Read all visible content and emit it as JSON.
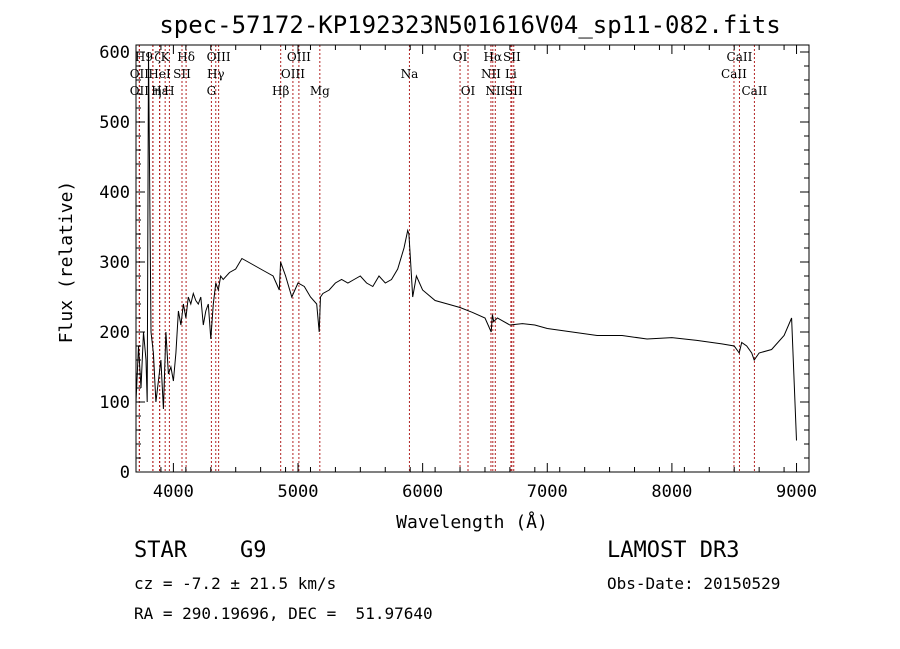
{
  "chart_data": {
    "type": "line",
    "title": "spec-57172-KP192323N501616V04_sp11-082.fits",
    "xlabel": "Wavelength (Å)",
    "ylabel": "Flux (relative)",
    "xlim": [
      3700,
      9100
    ],
    "ylim": [
      0,
      610
    ],
    "xticks": [
      4000,
      5000,
      6000,
      7000,
      8000,
      9000
    ],
    "yticks": [
      0,
      100,
      200,
      300,
      400,
      500,
      600
    ],
    "grid": false,
    "line_color": "#000000",
    "marker_color": "#b22222",
    "spectrum": {
      "name": "flux",
      "x": [
        3700,
        3720,
        3740,
        3760,
        3780,
        3790,
        3800,
        3820,
        3840,
        3860,
        3880,
        3900,
        3920,
        3940,
        3960,
        3980,
        4000,
        4020,
        4040,
        4060,
        4080,
        4100,
        4120,
        4140,
        4160,
        4180,
        4200,
        4220,
        4240,
        4260,
        4280,
        4300,
        4320,
        4340,
        4360,
        4380,
        4400,
        4450,
        4500,
        4550,
        4600,
        4650,
        4700,
        4750,
        4800,
        4850,
        4860,
        4900,
        4950,
        5000,
        5050,
        5100,
        5150,
        5170,
        5180,
        5200,
        5250,
        5300,
        5350,
        5400,
        5450,
        5500,
        5550,
        5600,
        5650,
        5700,
        5750,
        5800,
        5850,
        5880,
        5890,
        5900,
        5920,
        5950,
        6000,
        6100,
        6200,
        6300,
        6400,
        6500,
        6550,
        6560,
        6570,
        6600,
        6700,
        6800,
        6900,
        7000,
        7200,
        7400,
        7600,
        7800,
        8000,
        8200,
        8400,
        8500,
        8540,
        8560,
        8600,
        8640,
        8660,
        8700,
        8800,
        8900,
        8960,
        9000
      ],
      "y": [
        100,
        180,
        120,
        200,
        160,
        100,
        600,
        200,
        170,
        100,
        130,
        160,
        90,
        200,
        140,
        150,
        130,
        170,
        230,
        210,
        240,
        220,
        250,
        240,
        255,
        245,
        240,
        250,
        210,
        230,
        240,
        190,
        240,
        270,
        260,
        280,
        275,
        285,
        290,
        305,
        300,
        295,
        290,
        285,
        280,
        260,
        300,
        280,
        250,
        270,
        265,
        250,
        240,
        200,
        250,
        255,
        260,
        270,
        275,
        270,
        275,
        280,
        270,
        265,
        280,
        270,
        275,
        290,
        320,
        345,
        340,
        310,
        250,
        280,
        260,
        245,
        240,
        235,
        228,
        220,
        200,
        225,
        215,
        220,
        210,
        212,
        210,
        205,
        200,
        195,
        195,
        190,
        192,
        188,
        183,
        180,
        170,
        185,
        180,
        170,
        160,
        170,
        175,
        195,
        220,
        45
      ]
    },
    "line_markers": [
      {
        "label": "OII",
        "wavelength": 3727,
        "label_row": 2,
        "label_offset": 0
      },
      {
        "label": "H9",
        "wavelength": 3836,
        "label_row": 0,
        "label_offset": -9
      },
      {
        "label": "Hε",
        "wavelength": 3889,
        "label_row": 2,
        "label_offset": 0
      },
      {
        "label": "OII",
        "wavelength": 3727,
        "label_row": 1,
        "label_offset": 0
      },
      {
        "label": "HeI",
        "wavelength": 3889,
        "label_row": 1,
        "label_offset": 0
      },
      {
        "label": "ζ",
        "wavelength": 3890,
        "label_row": 0,
        "label_offset": -2
      },
      {
        "label": "η",
        "wavelength": 3835,
        "label_row": 2,
        "label_offset": 5
      },
      {
        "label": "K",
        "wavelength": 3934,
        "label_row": 0,
        "label_offset": 0
      },
      {
        "label": "H",
        "wavelength": 3968,
        "label_row": 2,
        "label_offset": 0
      },
      {
        "label": "SII",
        "wavelength": 4069,
        "label_row": 1,
        "label_offset": 0
      },
      {
        "label": "Hδ",
        "wavelength": 4102,
        "label_row": 0,
        "label_offset": 0
      },
      {
        "label": "G",
        "wavelength": 4305,
        "label_row": 2,
        "label_offset": 0
      },
      {
        "label": "Hγ",
        "wavelength": 4340,
        "label_row": 1,
        "label_offset": 0
      },
      {
        "label": "OIII",
        "wavelength": 4363,
        "label_row": 0,
        "label_offset": 0
      },
      {
        "label": "Hβ",
        "wavelength": 4861,
        "label_row": 2,
        "label_offset": 0
      },
      {
        "label": "OIII",
        "wavelength": 4959,
        "label_row": 1,
        "label_offset": 0
      },
      {
        "label": "OIII",
        "wavelength": 5007,
        "label_row": 0,
        "label_offset": 0
      },
      {
        "label": "Mg",
        "wavelength": 5175,
        "label_row": 2,
        "label_offset": 0
      },
      {
        "label": "Na",
        "wavelength": 5894,
        "label_row": 1,
        "label_offset": 0
      },
      {
        "label": "OI",
        "wavelength": 6300,
        "label_row": 0,
        "label_offset": 0
      },
      {
        "label": "OI",
        "wavelength": 6364,
        "label_row": 2,
        "label_offset": 0
      },
      {
        "label": "NII",
        "wavelength": 6548,
        "label_row": 1,
        "label_offset": 0
      },
      {
        "label": "Hα",
        "wavelength": 6563,
        "label_row": 0,
        "label_offset": 0
      },
      {
        "label": "NII",
        "wavelength": 6583,
        "label_row": 2,
        "label_offset": 0
      },
      {
        "label": "Li",
        "wavelength": 6708,
        "label_row": 1,
        "label_offset": 0
      },
      {
        "label": "SII",
        "wavelength": 6716,
        "label_row": 0,
        "label_offset": 0
      },
      {
        "label": "SII",
        "wavelength": 6731,
        "label_row": 2,
        "label_offset": 0
      },
      {
        "label": "CaII",
        "wavelength": 8498,
        "label_row": 1,
        "label_offset": 0
      },
      {
        "label": "CaII",
        "wavelength": 8542,
        "label_row": 0,
        "label_offset": 0
      },
      {
        "label": "CaII",
        "wavelength": 8662,
        "label_row": 2,
        "label_offset": 0
      }
    ]
  },
  "info": {
    "object_class": "STAR",
    "subclass": "G9",
    "survey": "LAMOST DR3",
    "redshift_line": "cz = -7.2 ± 21.5 km/s",
    "obs_date_line": "Obs-Date: 20150529",
    "coords_line": "RA = 290.19696, DEC =  51.97640"
  }
}
